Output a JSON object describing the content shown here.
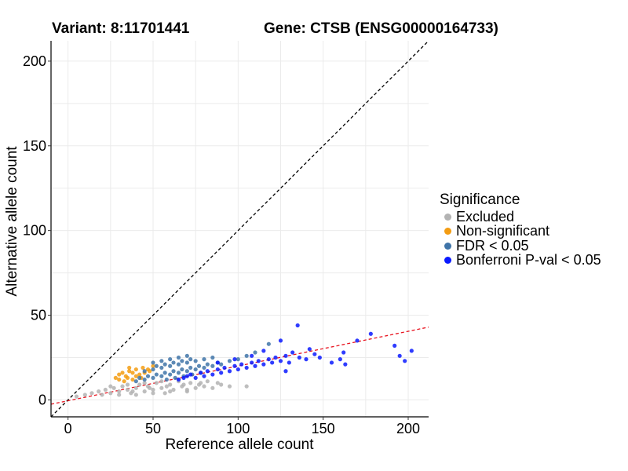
{
  "header": {
    "variant": "Variant: 8:11701441",
    "gene": "Gene: CTSB (ENSG00000164733)"
  },
  "legend": {
    "title": "Significance",
    "items": [
      {
        "label": "Excluded",
        "color": "#b3b3b3"
      },
      {
        "label": "Non-significant",
        "color": "#f39c12"
      },
      {
        "label": "FDR < 0.05",
        "color": "#3f74a8"
      },
      {
        "label": "Bonferroni P-val < 0.05",
        "color": "#0a1aff"
      }
    ]
  },
  "chart_data": {
    "type": "scatter",
    "title": "Variant: 8:11701441    Gene: CTSB (ENSG00000164733)",
    "xlabel": "Reference allele count",
    "ylabel": "Alternative allele count",
    "xlim": [
      -10,
      212
    ],
    "ylim": [
      -10,
      212
    ],
    "xticks": [
      0,
      50,
      100,
      150,
      200
    ],
    "yticks": [
      0,
      50,
      100,
      150,
      200
    ],
    "grid": true,
    "reference_lines": [
      {
        "name": "identity (y = x)",
        "slope": 1,
        "intercept": 0,
        "color": "#000000",
        "style": "dashed"
      },
      {
        "name": "fitted ratio",
        "slope": 0.205,
        "intercept": -0.5,
        "color": "#e8121e",
        "style": "dashed"
      }
    ],
    "series": [
      {
        "name": "Excluded",
        "color": "#b3b3b3",
        "points": [
          [
            5,
            2
          ],
          [
            10,
            3
          ],
          [
            14,
            4
          ],
          [
            18,
            5
          ],
          [
            20,
            3
          ],
          [
            22,
            6
          ],
          [
            25,
            4
          ],
          [
            27,
            7
          ],
          [
            30,
            5
          ],
          [
            32,
            8
          ],
          [
            35,
            6
          ],
          [
            37,
            4
          ],
          [
            40,
            7
          ],
          [
            42,
            9
          ],
          [
            45,
            5
          ],
          [
            47,
            8
          ],
          [
            50,
            6
          ],
          [
            52,
            10
          ],
          [
            55,
            7
          ],
          [
            57,
            4
          ],
          [
            60,
            9
          ],
          [
            62,
            6
          ],
          [
            65,
            11
          ],
          [
            67,
            8
          ],
          [
            70,
            5
          ],
          [
            72,
            10
          ],
          [
            75,
            7
          ],
          [
            77,
            9
          ],
          [
            80,
            8
          ],
          [
            82,
            11
          ],
          [
            85,
            7
          ],
          [
            88,
            10
          ],
          [
            90,
            9
          ],
          [
            95,
            8
          ],
          [
            105,
            8
          ],
          [
            25,
            8
          ],
          [
            35,
            9
          ],
          [
            45,
            10
          ],
          [
            55,
            11
          ],
          [
            65,
            12
          ],
          [
            38,
            5
          ],
          [
            48,
            7
          ],
          [
            58,
            8
          ],
          [
            68,
            9
          ],
          [
            78,
            10
          ],
          [
            30,
            3
          ],
          [
            40,
            3
          ],
          [
            50,
            4
          ],
          [
            60,
            5
          ],
          [
            70,
            6
          ]
        ]
      },
      {
        "name": "Non-significant",
        "color": "#f39c12",
        "points": [
          [
            28,
            13
          ],
          [
            30,
            15
          ],
          [
            32,
            16
          ],
          [
            34,
            14
          ],
          [
            36,
            17
          ],
          [
            38,
            12
          ],
          [
            40,
            18
          ],
          [
            42,
            15
          ],
          [
            44,
            19
          ],
          [
            30,
            12
          ],
          [
            35,
            13
          ],
          [
            40,
            14
          ],
          [
            45,
            16
          ],
          [
            47,
            18
          ],
          [
            50,
            20
          ],
          [
            33,
            11
          ],
          [
            38,
            16
          ],
          [
            43,
            13
          ],
          [
            48,
            17
          ],
          [
            36,
            19
          ]
        ]
      },
      {
        "name": "FDR < 0.05",
        "color": "#3f74a8",
        "points": [
          [
            40,
            11
          ],
          [
            42,
            13
          ],
          [
            45,
            12
          ],
          [
            47,
            14
          ],
          [
            50,
            13
          ],
          [
            52,
            15
          ],
          [
            55,
            14
          ],
          [
            57,
            16
          ],
          [
            60,
            15
          ],
          [
            62,
            17
          ],
          [
            65,
            16
          ],
          [
            67,
            18
          ],
          [
            70,
            17
          ],
          [
            72,
            19
          ],
          [
            75,
            18
          ],
          [
            77,
            20
          ],
          [
            80,
            19
          ],
          [
            82,
            21
          ],
          [
            85,
            20
          ],
          [
            88,
            22
          ],
          [
            90,
            21
          ],
          [
            95,
            23
          ],
          [
            100,
            24
          ],
          [
            105,
            26
          ],
          [
            110,
            28
          ],
          [
            118,
            33
          ],
          [
            45,
            17
          ],
          [
            50,
            18
          ],
          [
            55,
            19
          ],
          [
            60,
            20
          ],
          [
            65,
            21
          ],
          [
            70,
            22
          ],
          [
            75,
            23
          ],
          [
            80,
            24
          ],
          [
            85,
            25
          ],
          [
            50,
            22
          ],
          [
            55,
            23
          ],
          [
            60,
            24
          ],
          [
            65,
            25
          ],
          [
            70,
            26
          ],
          [
            58,
            12
          ],
          [
            63,
            13
          ],
          [
            68,
            14
          ],
          [
            73,
            15
          ],
          [
            78,
            16
          ],
          [
            52,
            20
          ],
          [
            57,
            21
          ],
          [
            62,
            22
          ],
          [
            67,
            23
          ],
          [
            72,
            24
          ]
        ]
      },
      {
        "name": "Bonferroni P-val < 0.05",
        "color": "#0a1aff",
        "points": [
          [
            65,
            12
          ],
          [
            68,
            13
          ],
          [
            70,
            14
          ],
          [
            72,
            15
          ],
          [
            75,
            13
          ],
          [
            78,
            16
          ],
          [
            80,
            14
          ],
          [
            82,
            17
          ],
          [
            85,
            15
          ],
          [
            88,
            18
          ],
          [
            90,
            16
          ],
          [
            92,
            19
          ],
          [
            95,
            17
          ],
          [
            98,
            20
          ],
          [
            100,
            18
          ],
          [
            102,
            21
          ],
          [
            105,
            19
          ],
          [
            108,
            22
          ],
          [
            110,
            20
          ],
          [
            112,
            23
          ],
          [
            115,
            21
          ],
          [
            118,
            24
          ],
          [
            120,
            22
          ],
          [
            122,
            25
          ],
          [
            125,
            23
          ],
          [
            128,
            26
          ],
          [
            130,
            22
          ],
          [
            132,
            28
          ],
          [
            135,
            44
          ],
          [
            136,
            25
          ],
          [
            140,
            24
          ],
          [
            142,
            30
          ],
          [
            145,
            27
          ],
          [
            148,
            25
          ],
          [
            155,
            22
          ],
          [
            160,
            24
          ],
          [
            162,
            28
          ],
          [
            163,
            21
          ],
          [
            170,
            35
          ],
          [
            178,
            39
          ],
          [
            192,
            32
          ],
          [
            195,
            26
          ],
          [
            198,
            23
          ],
          [
            202,
            29
          ],
          [
            125,
            35
          ],
          [
            128,
            17
          ],
          [
            115,
            29
          ],
          [
            108,
            26
          ],
          [
            98,
            24
          ],
          [
            88,
            22
          ]
        ]
      }
    ]
  }
}
